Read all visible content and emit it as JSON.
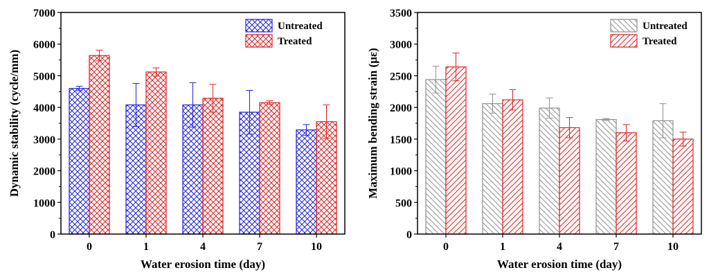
{
  "chart_data": [
    {
      "type": "bar",
      "categories": [
        "0",
        "1",
        "4",
        "7",
        "10"
      ],
      "xlabel": "Water erosion time (day)",
      "ylabel": "Dynamic stability (cycle/mm)",
      "ylim": [
        0,
        7000
      ],
      "yticks": [
        "0",
        "1000",
        "2000",
        "3000",
        "4000",
        "5000",
        "6000",
        "7000"
      ],
      "legend_position": "top-right",
      "series": [
        {
          "name": "Untreated",
          "color": "#2020e0",
          "pattern": "crosshatch",
          "values": [
            4600,
            4080,
            4080,
            3850,
            3290
          ],
          "errors": [
            70,
            680,
            700,
            690,
            170
          ]
        },
        {
          "name": "Treated",
          "color": "#e02020",
          "pattern": "crosshatch",
          "values": [
            5640,
            5120,
            4290,
            4150,
            3550
          ],
          "errors": [
            170,
            130,
            440,
            60,
            530
          ]
        }
      ]
    },
    {
      "type": "bar",
      "categories": [
        "0",
        "1",
        "4",
        "7",
        "10"
      ],
      "xlabel": "Water erosion time (day)",
      "ylabel": "Maximum bending strain (με)",
      "ylim": [
        0,
        3500
      ],
      "yticks": [
        "0",
        "500",
        "1000",
        "1500",
        "2000",
        "2500",
        "3000",
        "3500"
      ],
      "legend_position": "top-right",
      "series": [
        {
          "name": "Untreated",
          "color": "#909090",
          "pattern": "diagonal",
          "values": [
            2440,
            2060,
            1990,
            1810,
            1790
          ],
          "errors": [
            210,
            150,
            160,
            15,
            270
          ]
        },
        {
          "name": "Treated",
          "color": "#e02020",
          "pattern": "diagonal",
          "values": [
            2640,
            2120,
            1680,
            1600,
            1500
          ],
          "errors": [
            220,
            160,
            160,
            130,
            110
          ]
        }
      ]
    }
  ]
}
